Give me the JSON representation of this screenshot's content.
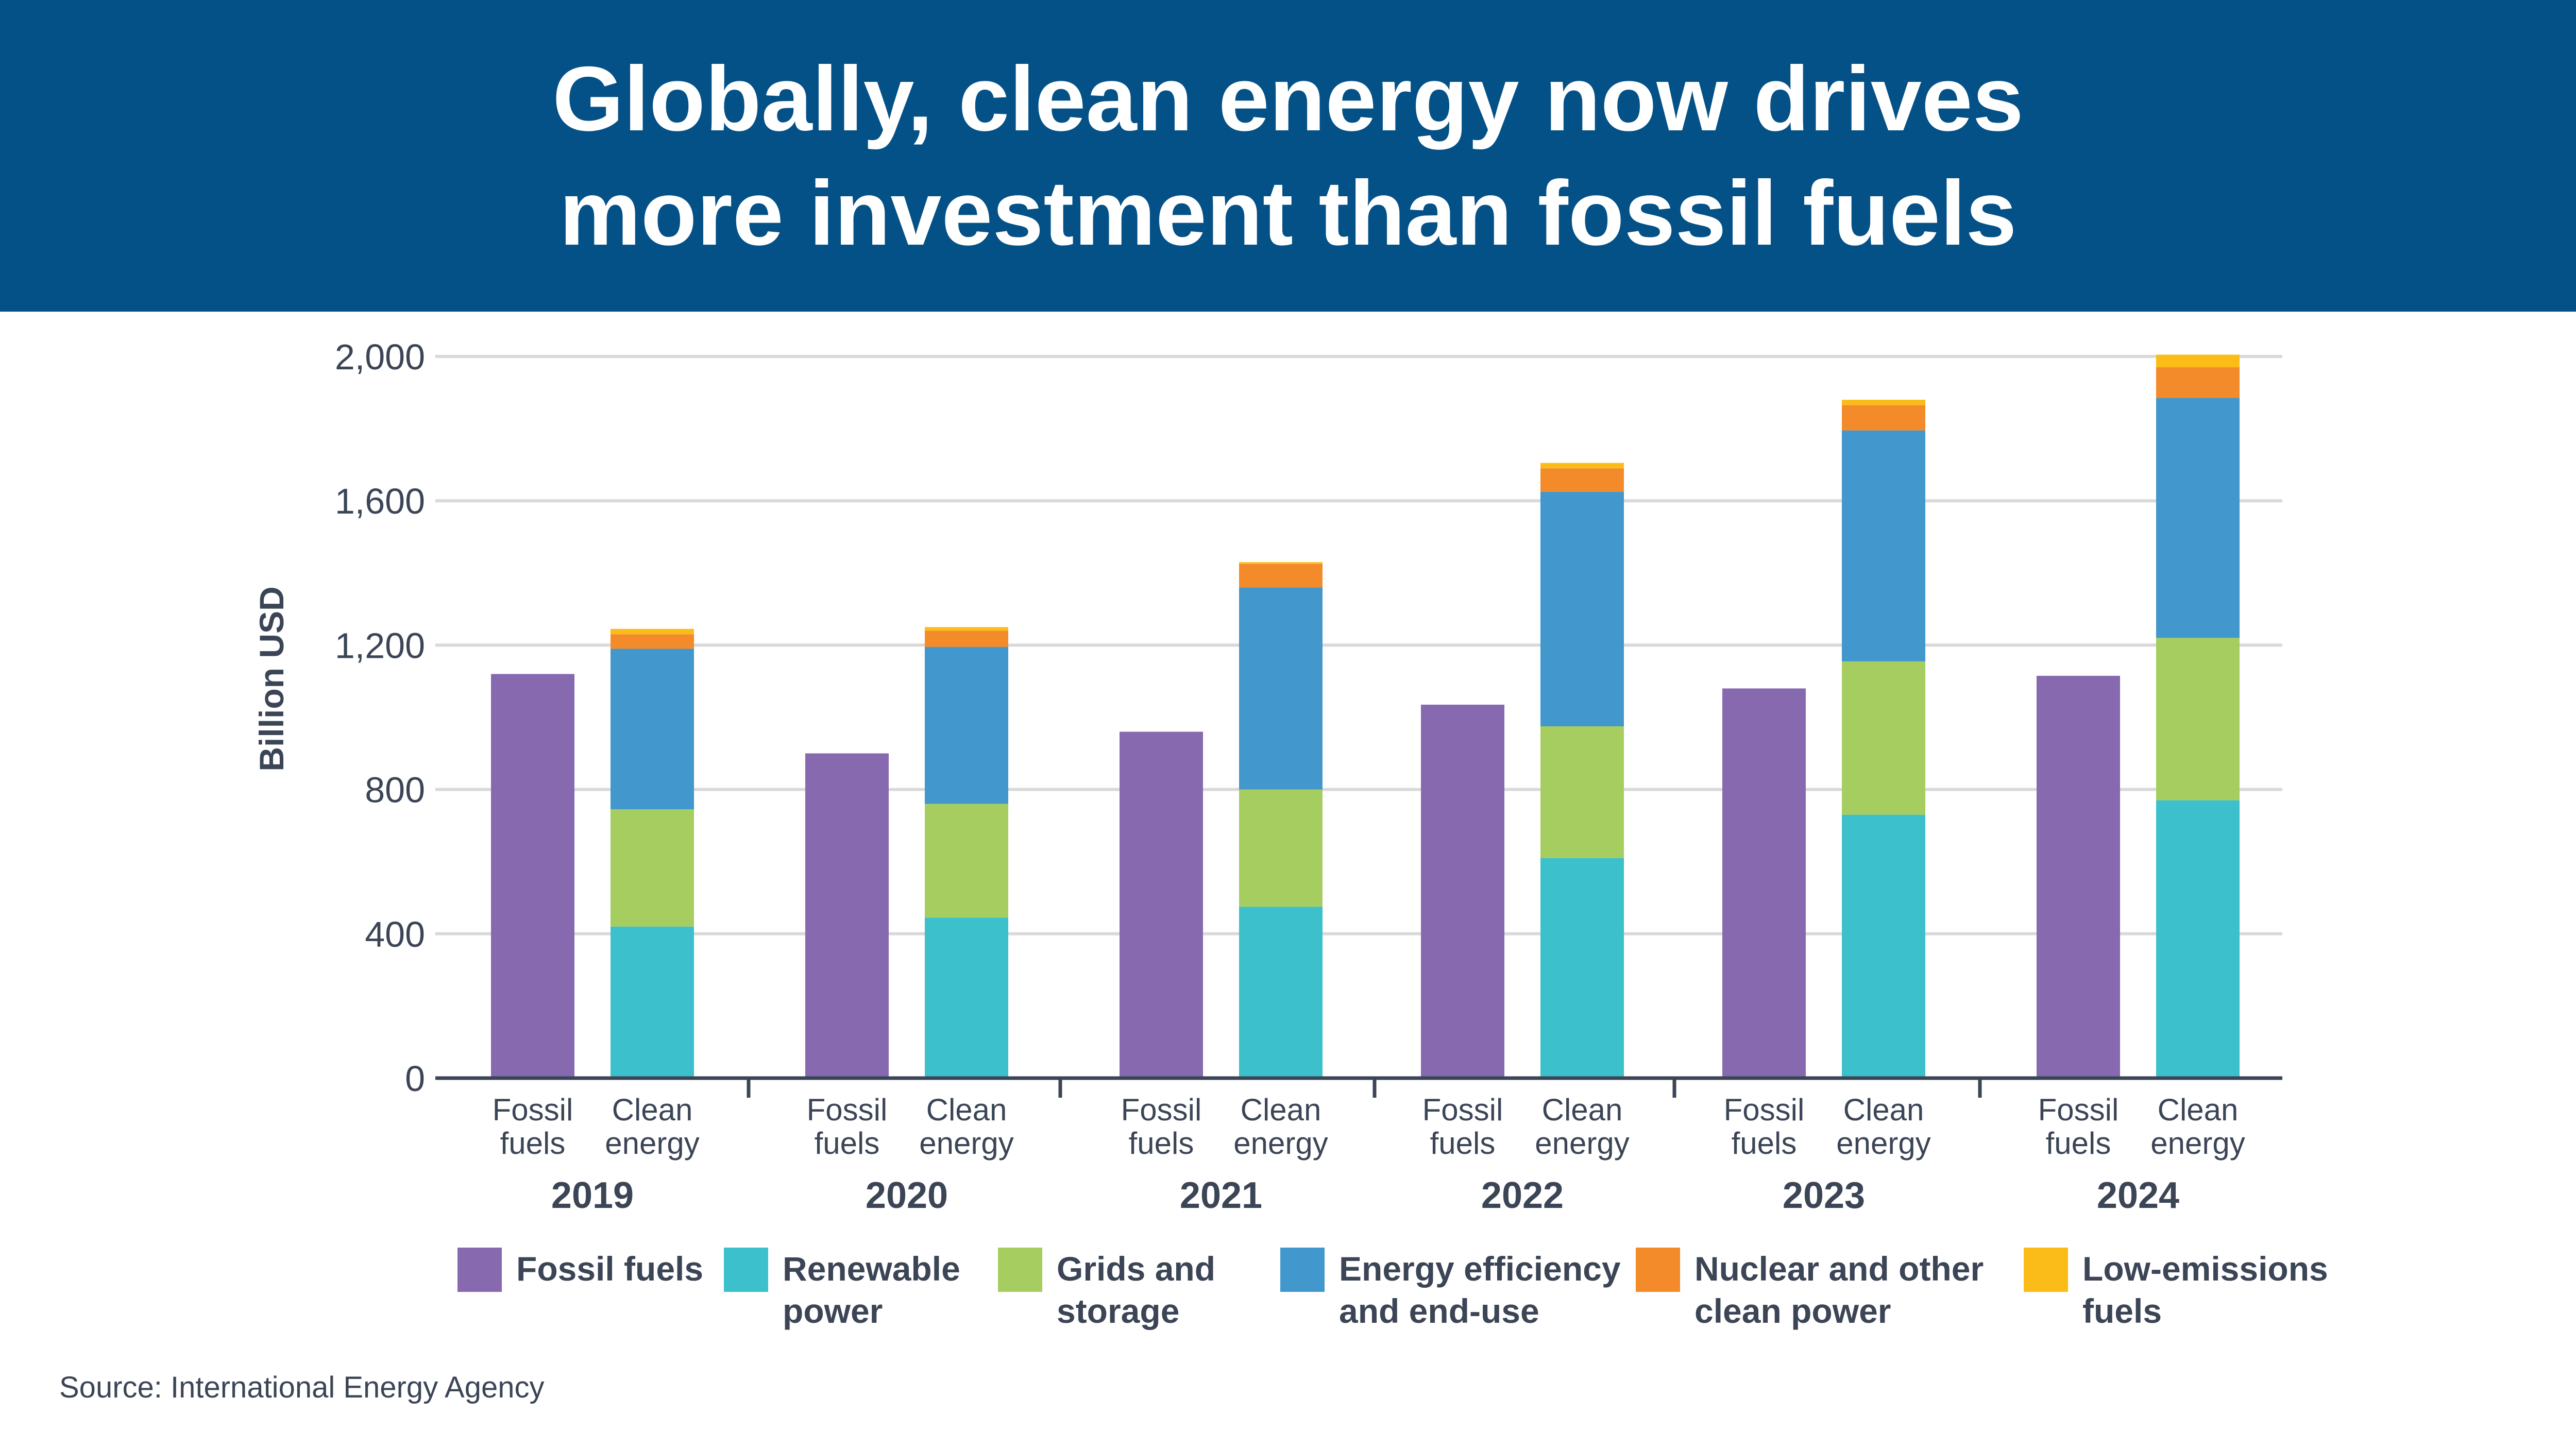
{
  "header": {
    "title_line1": "Globally, clean energy now drives",
    "title_line2": "more investment than fossil fuels"
  },
  "source": "Source: International Energy Agency",
  "colors": {
    "header_bg": "#045187",
    "text": "#3b4556",
    "gridline": "#d9d9d9",
    "axis": "#3b4556"
  },
  "chart_data": {
    "type": "bar",
    "stacked": true,
    "ylabel": "Billion USD",
    "ylim": [
      0,
      2000
    ],
    "yticks": [
      "0",
      "400",
      "800",
      "1,200",
      "1,600",
      "2,000"
    ],
    "ytick_values": [
      0,
      400,
      800,
      1200,
      1600,
      2000
    ],
    "grid": true,
    "legend_position": "bottom",
    "groups": [
      {
        "year": "2019",
        "fossil": 1120,
        "clean": [
          420,
          325,
          445,
          40,
          15
        ]
      },
      {
        "year": "2020",
        "fossil": 900,
        "clean": [
          445,
          315,
          435,
          45,
          10
        ]
      },
      {
        "year": "2021",
        "fossil": 960,
        "clean": [
          475,
          325,
          560,
          65,
          5
        ]
      },
      {
        "year": "2022",
        "fossil": 1035,
        "clean": [
          610,
          365,
          650,
          65,
          15
        ]
      },
      {
        "year": "2023",
        "fossil": 1080,
        "clean": [
          730,
          425,
          640,
          70,
          15
        ]
      },
      {
        "year": "2024",
        "fossil": 1115,
        "clean": [
          770,
          450,
          665,
          85,
          35
        ]
      }
    ],
    "bar_labels": {
      "fossil": [
        "Fossil",
        "fuels"
      ],
      "clean": [
        "Clean",
        "energy"
      ]
    },
    "series": [
      {
        "name": "Fossil fuels",
        "color": "#8769b0"
      },
      {
        "name": "Renewable\npower",
        "color": "#3cc0cb"
      },
      {
        "name": "Grids and\nstorage",
        "color": "#a6cd5f"
      },
      {
        "name": "Energy efficiency\nand end-use",
        "color": "#4297cc"
      },
      {
        "name": "Nuclear and other\nclean power",
        "color": "#f38b2b"
      },
      {
        "name": "Low-emissions\nfuels",
        "color": "#fbbc1a"
      }
    ]
  }
}
